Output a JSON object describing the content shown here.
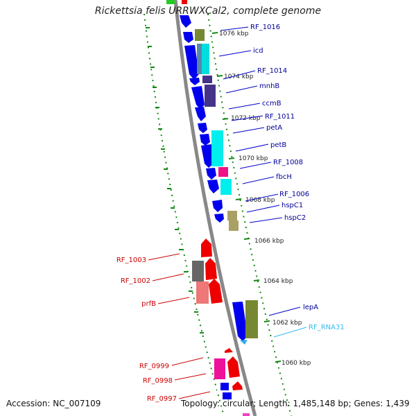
{
  "title": "Rickettsia felis URRWXCal2, complete genome",
  "footer": {
    "accession": "Accession: NC_007109",
    "topology": "Topology: circular; Length: 1,485,148 bp; Genes: 1,439"
  },
  "ticks": [
    "1076 kbp",
    "1074 kbp",
    "1072 kbp",
    "1070 kbp",
    "1068 kbp",
    "1066 kbp",
    "1064 kbp",
    "1062 kbp",
    "1060 kbp"
  ],
  "genes_right": [
    {
      "label": "RF_1016",
      "color": "#000099"
    },
    {
      "label": "icd",
      "color": "#000099"
    },
    {
      "label": "RF_1014",
      "color": "#000099"
    },
    {
      "label": "mnhB",
      "color": "#000099"
    },
    {
      "label": "ccmB",
      "color": "#000099"
    },
    {
      "label": "RF_1011",
      "color": "#000099"
    },
    {
      "label": "petA",
      "color": "#000099"
    },
    {
      "label": "petB",
      "color": "#000099"
    },
    {
      "label": "RF_1008",
      "color": "#000099"
    },
    {
      "label": "fbcH",
      "color": "#000099"
    },
    {
      "label": "RF_1006",
      "color": "#000099"
    },
    {
      "label": "hspC1",
      "color": "#000099"
    },
    {
      "label": "hspC2",
      "color": "#000099"
    },
    {
      "label": "lepA",
      "color": "#000099"
    },
    {
      "label": "RF_RNA31",
      "color": "#33bbee"
    }
  ],
  "genes_left": [
    {
      "label": "RF_1003",
      "color": "#cc0000"
    },
    {
      "label": "RF_1002",
      "color": "#cc0000"
    },
    {
      "label": "prfB",
      "color": "#cc0000"
    },
    {
      "label": "RF_0999",
      "color": "#cc0000"
    },
    {
      "label": "RF_0998",
      "color": "#cc0000"
    },
    {
      "label": "RF_0997",
      "color": "#cc0000"
    }
  ]
}
